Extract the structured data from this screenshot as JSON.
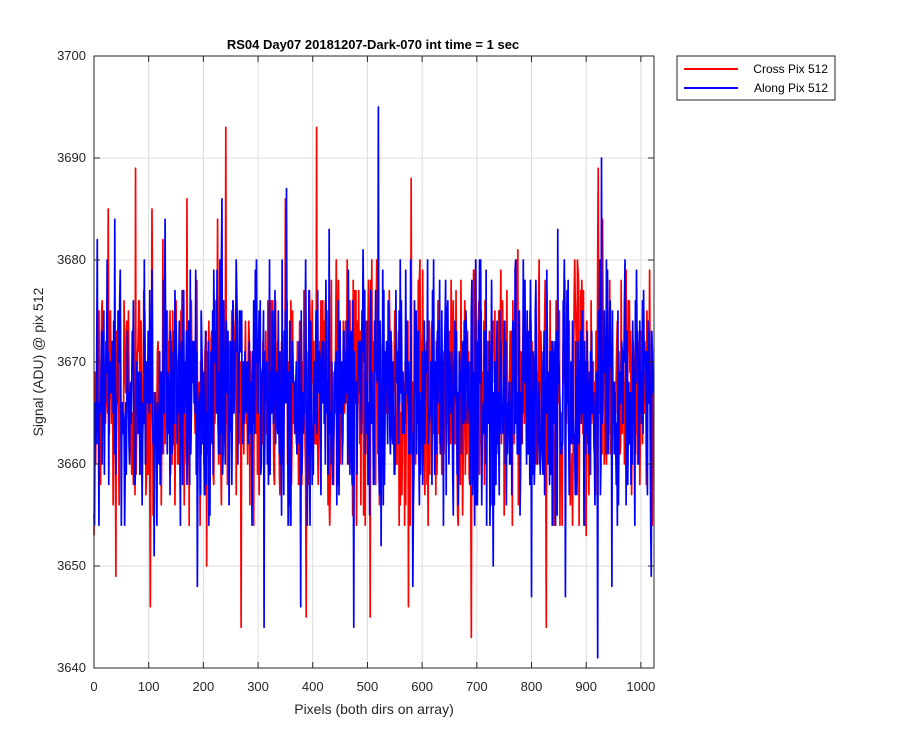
{
  "chart_data": {
    "type": "line",
    "title": "RS04 Day07 20181207-Dark-070 int time = 1 sec",
    "xlabel": "Pixels (both dirs on array)",
    "ylabel": "Signal (ADU) @ pix 512",
    "xlim": [
      0,
      1024
    ],
    "ylim": [
      3640,
      3700
    ],
    "xticks": [
      0,
      100,
      200,
      300,
      400,
      500,
      600,
      700,
      800,
      900,
      1000
    ],
    "yticks": [
      3640,
      3650,
      3660,
      3670,
      3680,
      3690,
      3700
    ],
    "grid": true,
    "legend_position": "outside-top-right",
    "series": [
      {
        "name": "Cross Pix 512",
        "color": "#ff0000",
        "baseline": 3667,
        "x": [
          0,
          8,
          26,
          40,
          76,
          103,
          106,
          126,
          170,
          206,
          226,
          241,
          269,
          282,
          350,
          388,
          407,
          438,
          460,
          505,
          550,
          575,
          580,
          690,
          775,
          827,
          845,
          900,
          922,
          930,
          1010,
          1024
        ],
        "y": [
          3653,
          3675,
          3685,
          3649,
          3689,
          3646,
          3685,
          3682,
          3686,
          3650,
          3684,
          3693,
          3644,
          3670,
          3686,
          3645,
          3693,
          3658,
          3674,
          3645,
          3675,
          3646,
          3688,
          3643,
          3681,
          3644,
          3676,
          3653,
          3689,
          3684,
          3658,
          3667
        ]
      },
      {
        "name": "Along Pix 512",
        "color": "#0000ff",
        "baseline": 3667,
        "x": [
          0,
          6,
          38,
          110,
          130,
          189,
          234,
          260,
          311,
          352,
          378,
          430,
          475,
          492,
          520,
          525,
          560,
          583,
          643,
          730,
          770,
          800,
          848,
          862,
          921,
          928,
          947,
          1005,
          1019,
          1024
        ],
        "y": [
          3655,
          3682,
          3684,
          3651,
          3684,
          3648,
          3686,
          3680,
          3644,
          3687,
          3646,
          3683,
          3644,
          3681,
          3695,
          3652,
          3680,
          3648,
          3678,
          3650,
          3679,
          3647,
          3683,
          3647,
          3641,
          3690,
          3648,
          3677,
          3649,
          3667
        ]
      }
    ]
  }
}
